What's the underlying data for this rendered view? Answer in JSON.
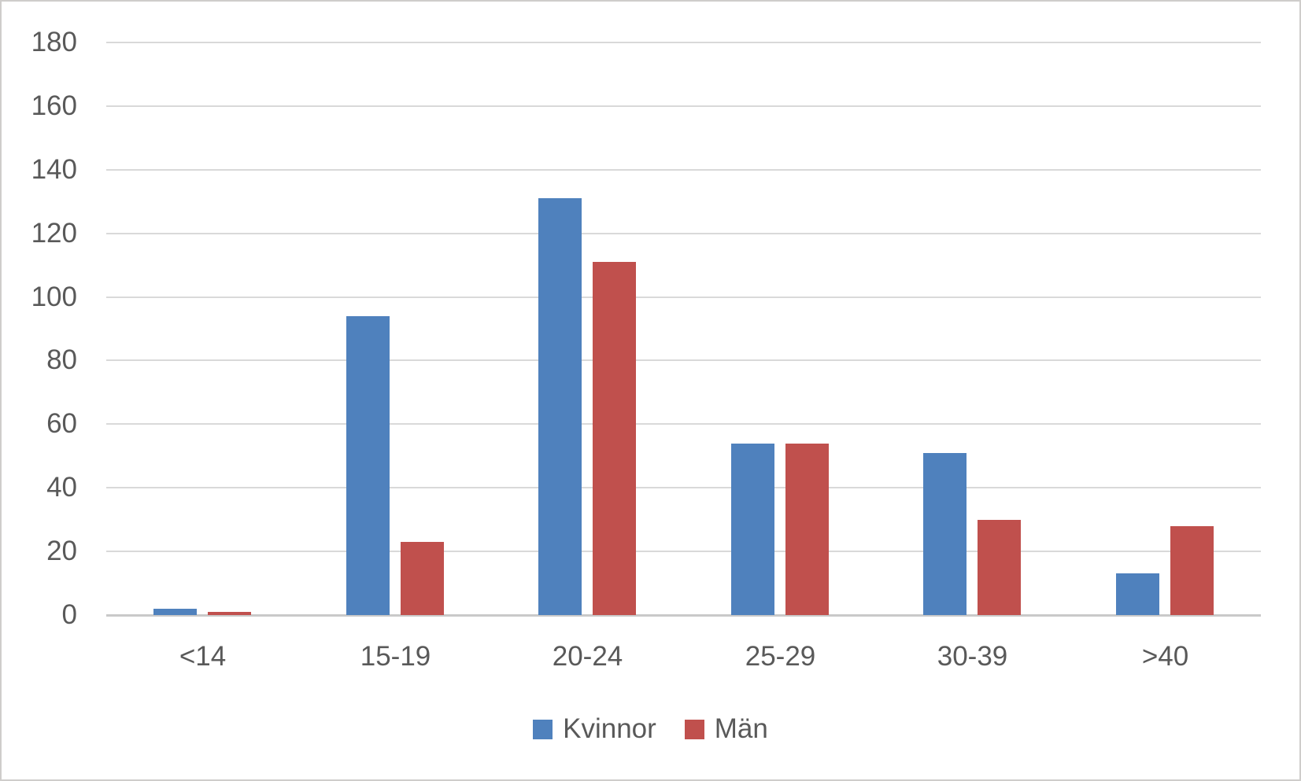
{
  "chart_data": {
    "type": "bar",
    "categories": [
      "<14",
      "15-19",
      "20-24",
      "25-29",
      "30-39",
      ">40"
    ],
    "series": [
      {
        "name": "Kvinnor",
        "color": "#4F81BD",
        "values": [
          2,
          94,
          131,
          54,
          51,
          13
        ]
      },
      {
        "name": "Män",
        "color": "#C0504D",
        "values": [
          1,
          23,
          111,
          54,
          30,
          28
        ]
      }
    ],
    "title": "",
    "xlabel": "",
    "ylabel": "",
    "ylim": [
      0,
      180
    ],
    "ytick_step": 20,
    "y_tick_labels": [
      "0",
      "20",
      "40",
      "60",
      "80",
      "100",
      "120",
      "140",
      "160",
      "180"
    ],
    "grid": true,
    "legend_position": "bottom"
  },
  "styles": {
    "grid_color": "#D9D9D9",
    "axis_line_color": "#C9C9C9",
    "tick_label_color": "#595959",
    "background": "#FFFFFF",
    "border_color": "#CFCDCB"
  }
}
